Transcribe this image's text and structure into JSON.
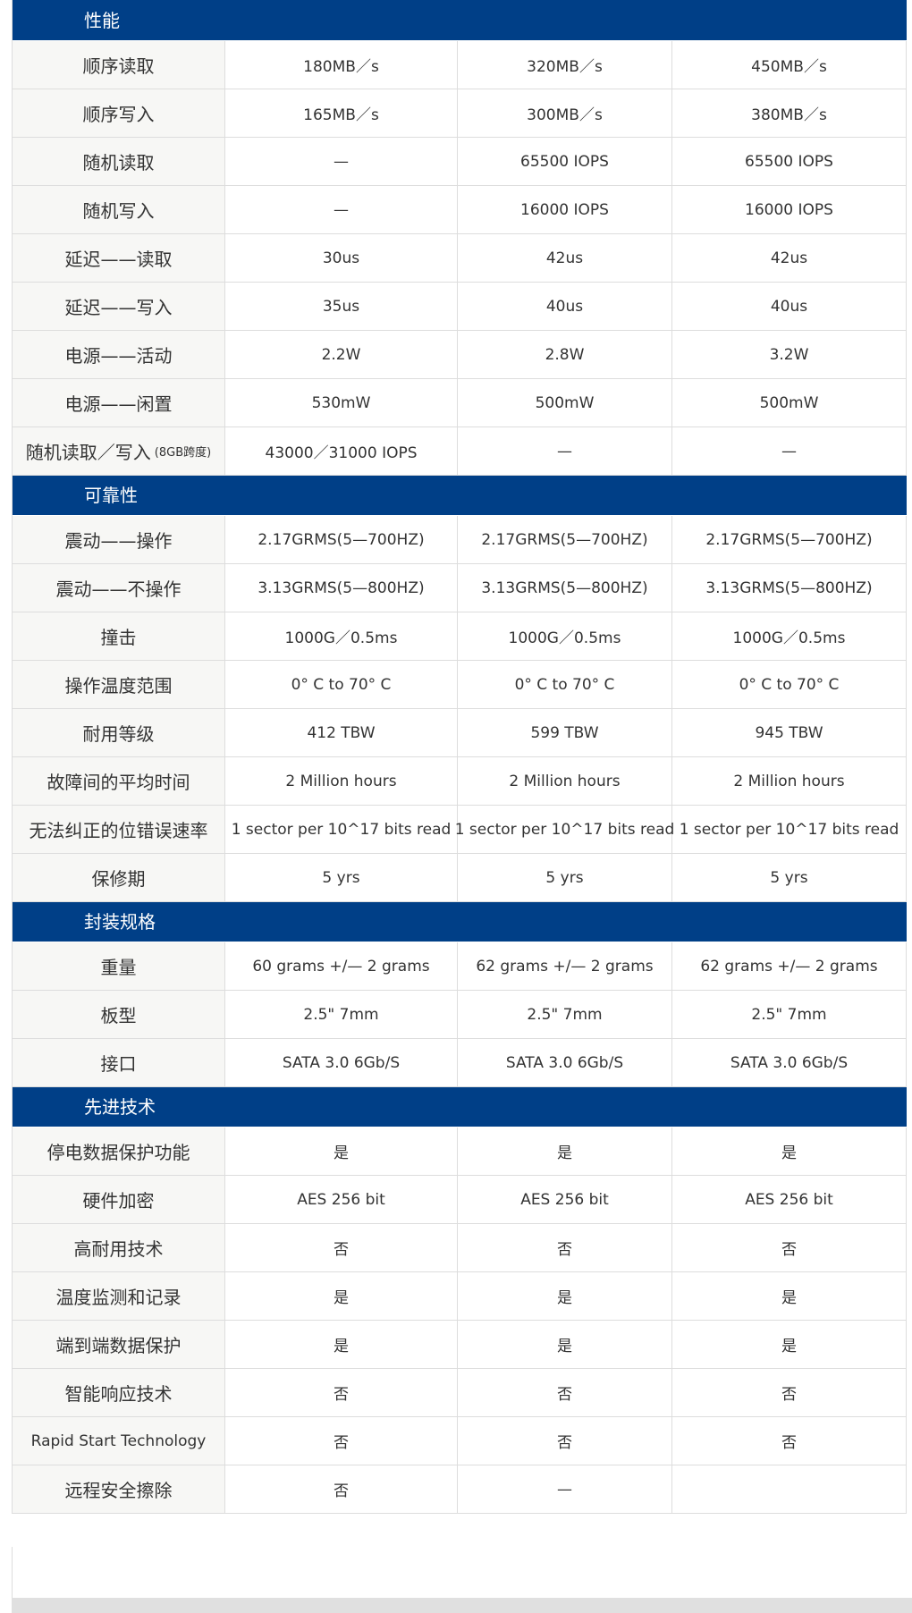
{
  "colors": {
    "section_header": "#003f87",
    "label_bg": "#f7f7f5",
    "border": "#dddddd"
  },
  "sections": [
    {
      "title": "性能",
      "rows": [
        {
          "label": "顺序读取",
          "values": [
            "180MB／s",
            "320MB／s",
            "450MB／s"
          ]
        },
        {
          "label": "顺序写入",
          "values": [
            "165MB／s",
            "300MB／s",
            "380MB／s"
          ]
        },
        {
          "label": "随机读取",
          "values": [
            "—",
            "65500 IOPS",
            "65500 IOPS"
          ]
        },
        {
          "label": "随机写入",
          "values": [
            "—",
            "16000 IOPS",
            "16000 IOPS"
          ]
        },
        {
          "label": "延迟——读取",
          "values": [
            "30us",
            "42us",
            "42us"
          ]
        },
        {
          "label": "延迟——写入",
          "values": [
            "35us",
            "40us",
            "40us"
          ]
        },
        {
          "label": "电源——活动",
          "values": [
            "2.2W",
            "2.8W",
            "3.2W"
          ]
        },
        {
          "label": "电源——闲置",
          "values": [
            "530mW",
            "500mW",
            "500mW"
          ]
        },
        {
          "label": "随机读取／写入",
          "label_note": "(8GB跨度)",
          "values": [
            "43000／31000 IOPS",
            "—",
            "—"
          ]
        }
      ]
    },
    {
      "title": "可靠性",
      "rows": [
        {
          "label": "震动——操作",
          "values": [
            "2.17GRMS(5—700HZ)",
            "2.17GRMS(5—700HZ)",
            "2.17GRMS(5—700HZ)"
          ]
        },
        {
          "label": "震动——不操作",
          "values": [
            "3.13GRMS(5—800HZ)",
            "3.13GRMS(5—800HZ)",
            "3.13GRMS(5—800HZ)"
          ]
        },
        {
          "label": "撞击",
          "values": [
            "1000G／0.5ms",
            "1000G／0.5ms",
            "1000G／0.5ms"
          ]
        },
        {
          "label": "操作温度范围",
          "values": [
            "0° C to 70° C",
            "0° C to 70° C",
            "0° C to 70° C"
          ]
        },
        {
          "label": "耐用等级",
          "values": [
            "412 TBW",
            "599 TBW",
            "945 TBW"
          ]
        },
        {
          "label": "故障间的平均时间",
          "values": [
            "2 Million hours",
            "2 Million hours",
            "2 Million hours"
          ]
        },
        {
          "label": "无法纠正的位错误速率",
          "values": [
            "1 sector per 10^17 bits read",
            "1 sector per 10^17 bits read",
            "1 sector per 10^17 bits read"
          ]
        },
        {
          "label": "保修期",
          "values": [
            "5 yrs",
            "5 yrs",
            "5 yrs"
          ]
        }
      ]
    },
    {
      "title": "封装规格",
      "rows": [
        {
          "label": "重量",
          "values": [
            "60 grams +/— 2 grams",
            "62 grams +/— 2 grams",
            "62 grams +/— 2 grams"
          ]
        },
        {
          "label": "板型",
          "values": [
            "2.5\" 7mm",
            "2.5\" 7mm",
            "2.5\" 7mm"
          ]
        },
        {
          "label": "接口",
          "values": [
            "SATA 3.0 6Gb/S",
            "SATA 3.0 6Gb/S",
            "SATA 3.0 6Gb/S"
          ]
        }
      ]
    },
    {
      "title": "先进技术",
      "rows": [
        {
          "label": "停电数据保护功能",
          "values": [
            "是",
            "是",
            "是"
          ]
        },
        {
          "label": "硬件加密",
          "values": [
            "AES 256 bit",
            "AES 256 bit",
            "AES 256 bit"
          ]
        },
        {
          "label": "高耐用技术",
          "values": [
            "否",
            "否",
            "否"
          ]
        },
        {
          "label": "温度监测和记录",
          "values": [
            "是",
            "是",
            "是"
          ]
        },
        {
          "label": "端到端数据保护",
          "values": [
            "是",
            "是",
            "是"
          ]
        },
        {
          "label": "智能响应技术",
          "values": [
            "否",
            "否",
            "否"
          ]
        },
        {
          "label": "Rapid Start Technology",
          "values": [
            "否",
            "否",
            "否"
          ]
        },
        {
          "label": "远程安全擦除",
          "values": [
            "否",
            "—",
            ""
          ]
        }
      ]
    }
  ]
}
